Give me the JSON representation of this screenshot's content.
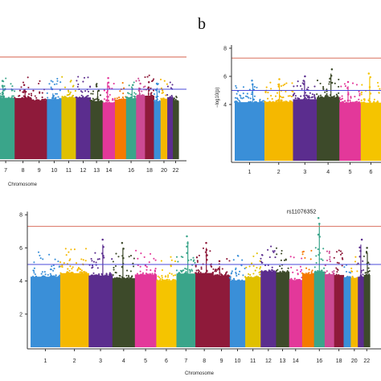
{
  "figure": {
    "panels": [
      {
        "id": "a",
        "label": "",
        "type": "scatter",
        "chart_data": {
          "type": "scatter",
          "xlabel": "Chromosome",
          "ylabel": "",
          "ylim": [
            0,
            8
          ],
          "y_ticks": [],
          "x_tick_labels": [
            "7",
            "8",
            "9",
            "10",
            "11",
            "12",
            "13",
            "14",
            "16",
            "18",
            "20",
            "22"
          ],
          "chromosomes_visible": [
            7,
            8,
            9,
            10,
            11,
            12,
            13,
            14,
            15,
            16,
            17,
            18,
            19,
            20,
            21,
            22
          ],
          "genome_wide_line": 7.3,
          "suggestive_line": 5.0,
          "top_snps": [
            {
              "chr": 7,
              "y": 5.6
            },
            {
              "chr": 8,
              "y": 5.3
            },
            {
              "chr": 10,
              "y": 5.0
            },
            {
              "chr": 13,
              "y": 5.2
            },
            {
              "chr": 14,
              "y": 5.8
            },
            {
              "chr": 16,
              "y": 5.3
            },
            {
              "chr": 17,
              "y": 5.4
            },
            {
              "chr": 18,
              "y": 5.5
            },
            {
              "chr": 19,
              "y": 5.4
            }
          ]
        }
      },
      {
        "id": "b",
        "label": "b",
        "type": "scatter",
        "chart_data": {
          "type": "scatter",
          "xlabel": "",
          "ylabel": "−log10(p)",
          "ylim": [
            0,
            8
          ],
          "y_ticks": [
            4,
            6,
            8
          ],
          "x_tick_labels": [
            "1",
            "2",
            "3",
            "4",
            "5",
            "6"
          ],
          "chromosomes_visible": [
            1,
            2,
            3,
            4,
            5,
            6
          ],
          "genome_wide_line": 7.3,
          "suggestive_line": 5.0,
          "top_snps": [
            {
              "chr": 1,
              "y": 5.7
            },
            {
              "chr": 2,
              "y": 5.8
            },
            {
              "chr": 3,
              "y": 6.0
            },
            {
              "chr": 4,
              "y": 6.5
            },
            {
              "chr": 5,
              "y": 5.6
            },
            {
              "chr": 6,
              "y": 6.2
            }
          ]
        }
      },
      {
        "id": "c",
        "label": "",
        "type": "scatter",
        "chart_data": {
          "type": "scatter",
          "xlabel": "Chromosome",
          "ylabel": "",
          "ylim": [
            0,
            8
          ],
          "y_ticks": [
            2,
            4,
            6,
            8
          ],
          "x_tick_labels": [
            "1",
            "2",
            "3",
            "4",
            "5",
            "6",
            "7",
            "8",
            "9",
            "10",
            "11",
            "12",
            "13",
            "14",
            "16",
            "18",
            "20",
            "22"
          ],
          "chromosomes_visible": [
            1,
            2,
            3,
            4,
            5,
            6,
            7,
            8,
            9,
            10,
            11,
            12,
            13,
            14,
            15,
            16,
            17,
            18,
            19,
            20,
            21,
            22
          ],
          "genome_wide_line": 7.3,
          "suggestive_line": 5.0,
          "annotation": "rs11076352",
          "top_snps": [
            {
              "chr": 3,
              "y": 6.5
            },
            {
              "chr": 4,
              "y": 6.3
            },
            {
              "chr": 7,
              "y": 6.7
            },
            {
              "chr": 8,
              "y": 6.3
            },
            {
              "chr": 9,
              "y": 5.2
            },
            {
              "chr": 16,
              "y": 7.8
            },
            {
              "chr": 21,
              "y": 6.5
            },
            {
              "chr": 22,
              "y": 6.0
            }
          ]
        }
      }
    ],
    "chromosome_colors": [
      "#3a8fd8",
      "#f5b800",
      "#5b2d8e",
      "#3d4a2a",
      "#e3389a",
      "#f5c400",
      "#3aa58a",
      "#8e1a3a",
      "#8e1a3a",
      "#3a8fd8",
      "#e0c000",
      "#5b2d8e",
      "#3d4a2a",
      "#e3389a",
      "#f57a00",
      "#3aa58a",
      "#cc4a94",
      "#8e1a3a",
      "#3a8fd8",
      "#f5b800",
      "#5b2d8e",
      "#3d4a2a"
    ],
    "line_colors": {
      "genome_wide": "#d9705f",
      "suggestive": "#4a4ad8"
    }
  }
}
